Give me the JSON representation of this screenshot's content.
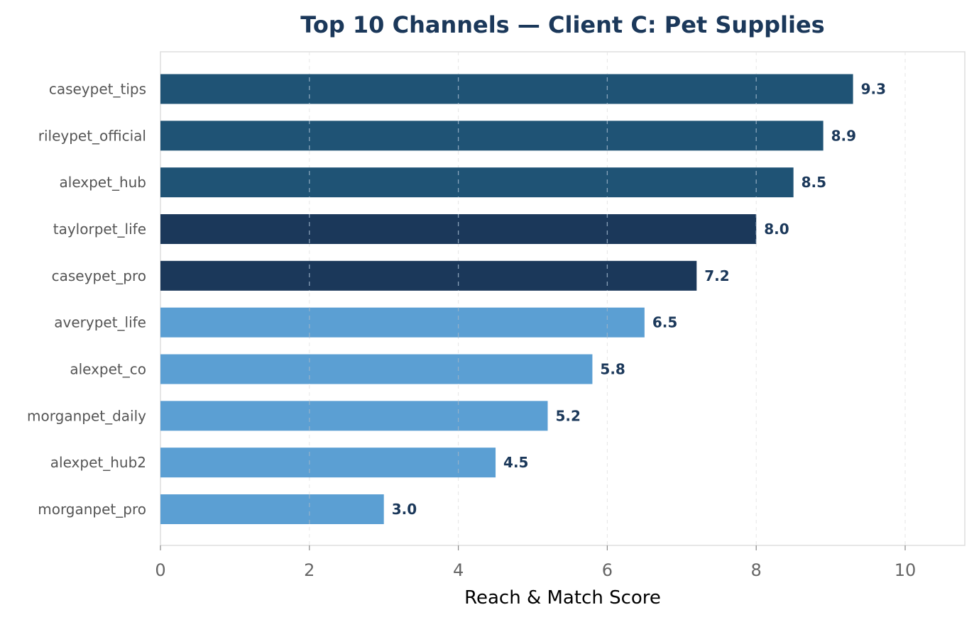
{
  "chart_data": {
    "type": "bar",
    "orientation": "horizontal",
    "title": "Top 10 Channels — Client C: Pet Supplies",
    "xlabel": "Reach & Match Score",
    "ylabel": "",
    "categories": [
      "caseypet_tips",
      "rileypet_official",
      "alexpet_hub",
      "taylorpet_life",
      "caseypet_pro",
      "averypet_life",
      "alexpet_co",
      "morganpet_daily",
      "alexpet_hub2",
      "morganpet_pro"
    ],
    "values": [
      9.3,
      8.9,
      8.5,
      8.0,
      7.2,
      6.5,
      5.8,
      5.2,
      4.5,
      3.0
    ],
    "value_labels": [
      "9.3",
      "8.9",
      "8.5",
      "8.0",
      "7.2",
      "6.5",
      "5.8",
      "5.2",
      "4.5",
      "3.0"
    ],
    "bar_colors": [
      "#1f5375",
      "#1f5375",
      "#1f5375",
      "#1b385a",
      "#1b385a",
      "#5b9fd3",
      "#5b9fd3",
      "#5b9fd3",
      "#5b9fd3",
      "#5b9fd3"
    ],
    "xlim": [
      0,
      10.8
    ],
    "xticks": [
      0,
      2,
      4,
      6,
      8,
      10
    ],
    "xtick_labels": [
      "0",
      "2",
      "4",
      "6",
      "8",
      "10"
    ],
    "grid": "vertical dashed",
    "legend": "none",
    "colors": {
      "title": "#1b385a",
      "value_label": "#1b385a",
      "axis_frame": "#dddddd",
      "grid": "#9bb3c8"
    }
  }
}
